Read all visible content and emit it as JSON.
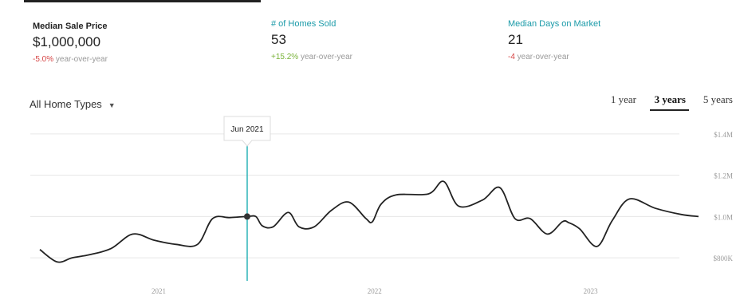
{
  "stats": [
    {
      "label": "Median Sale Price",
      "value": "$1,000,000",
      "change": "-5.0%",
      "change_suffix": " year-over-year"
    },
    {
      "label": "# of Homes Sold",
      "value": "53",
      "change": "+15.2%",
      "change_suffix": " year-over-year"
    },
    {
      "label": "Median Days on Market",
      "value": "21",
      "change": "-4",
      "change_suffix": " year-over-year"
    }
  ],
  "filter": {
    "label": "All Home Types"
  },
  "ranges": [
    "1 year",
    "3 years",
    "5 years"
  ],
  "selected_range": "3 years",
  "colors": {
    "line": "#222222",
    "cursor": "#2bb3b8",
    "grid": "#e6e6e6",
    "active_tab": "#222222",
    "negative": "#d64545",
    "positive": "#7ab33a",
    "teal": "#1a9aa8"
  },
  "tooltip": {
    "label": "Jun 2021"
  },
  "chart_data": {
    "type": "line",
    "title": "",
    "xlabel": "",
    "ylabel": "",
    "x_tick_labels": [
      "2021",
      "2022",
      "2023"
    ],
    "x_tick_years": [
      2021.0,
      2022.0,
      2023.0
    ],
    "y_tick_labels": [
      "$1.4M",
      "$1.2M",
      "$1.0M",
      "$800K"
    ],
    "y_tick_values": [
      1400000,
      1200000,
      1000000,
      800000
    ],
    "ylim": [
      700000,
      1450000
    ],
    "xlim": [
      2020.45,
      2023.5
    ],
    "grid": true,
    "legend": "none",
    "series": [
      {
        "x": [
          2020.45,
          2020.53,
          2020.6,
          2020.68,
          2020.78,
          2020.88,
          2020.98,
          2021.08,
          2021.18,
          2021.25,
          2021.33,
          2021.41,
          2021.45,
          2021.48,
          2021.53,
          2021.6,
          2021.65,
          2021.72,
          2021.8,
          2021.88,
          2021.96,
          2021.99,
          2022.03,
          2022.1,
          2022.25,
          2022.32,
          2022.39,
          2022.5,
          2022.58,
          2022.65,
          2022.72,
          2022.8,
          2022.87,
          2022.9,
          2022.95,
          2023.03,
          2023.1,
          2023.18,
          2023.3,
          2023.42,
          2023.5
        ],
        "y": [
          840000,
          780000,
          800000,
          815000,
          845000,
          915000,
          885000,
          865000,
          865000,
          990000,
          995000,
          1000000,
          1000000,
          955000,
          950000,
          1020000,
          950000,
          950000,
          1030000,
          1070000,
          990000,
          975000,
          1060000,
          1105000,
          1110000,
          1170000,
          1050000,
          1080000,
          1140000,
          990000,
          990000,
          915000,
          975000,
          970000,
          940000,
          855000,
          980000,
          1085000,
          1040000,
          1010000,
          1000000
        ]
      }
    ],
    "highlight": {
      "x": 2021.41,
      "y": 1000000
    }
  }
}
